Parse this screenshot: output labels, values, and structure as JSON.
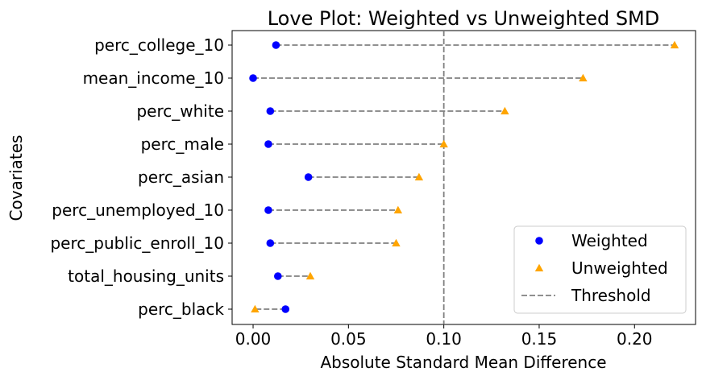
{
  "chart_data": {
    "type": "scatter",
    "title": "Love Plot: Weighted vs Unweighted SMD",
    "xlabel": "Absolute Standard Mean Difference",
    "ylabel": "Covariates",
    "xlim": [
      -0.011,
      0.232
    ],
    "x_ticks": [
      "0.00",
      "0.05",
      "0.10",
      "0.15",
      "0.20"
    ],
    "x_tick_values": [
      0.0,
      0.05,
      0.1,
      0.15,
      0.2
    ],
    "categories": [
      "perc_college_10",
      "mean_income_10",
      "perc_white",
      "perc_male",
      "perc_asian",
      "perc_unemployed_10",
      "perc_public_enroll_10",
      "total_housing_units",
      "perc_black"
    ],
    "series": [
      {
        "name": "Weighted",
        "marker": "circle",
        "color": "#0000ff",
        "values": [
          0.012,
          0.0,
          0.009,
          0.008,
          0.029,
          0.008,
          0.009,
          0.013,
          0.017
        ]
      },
      {
        "name": "Unweighted",
        "marker": "triangle",
        "color": "#ffa500",
        "values": [
          0.221,
          0.173,
          0.132,
          0.1,
          0.087,
          0.076,
          0.075,
          0.03,
          0.001
        ]
      }
    ],
    "threshold": {
      "name": "Threshold",
      "value": 0.1,
      "color": "#808080",
      "style": "dashed"
    },
    "connector_color": "#808080",
    "grid": false,
    "legend_position": "lower-right"
  }
}
